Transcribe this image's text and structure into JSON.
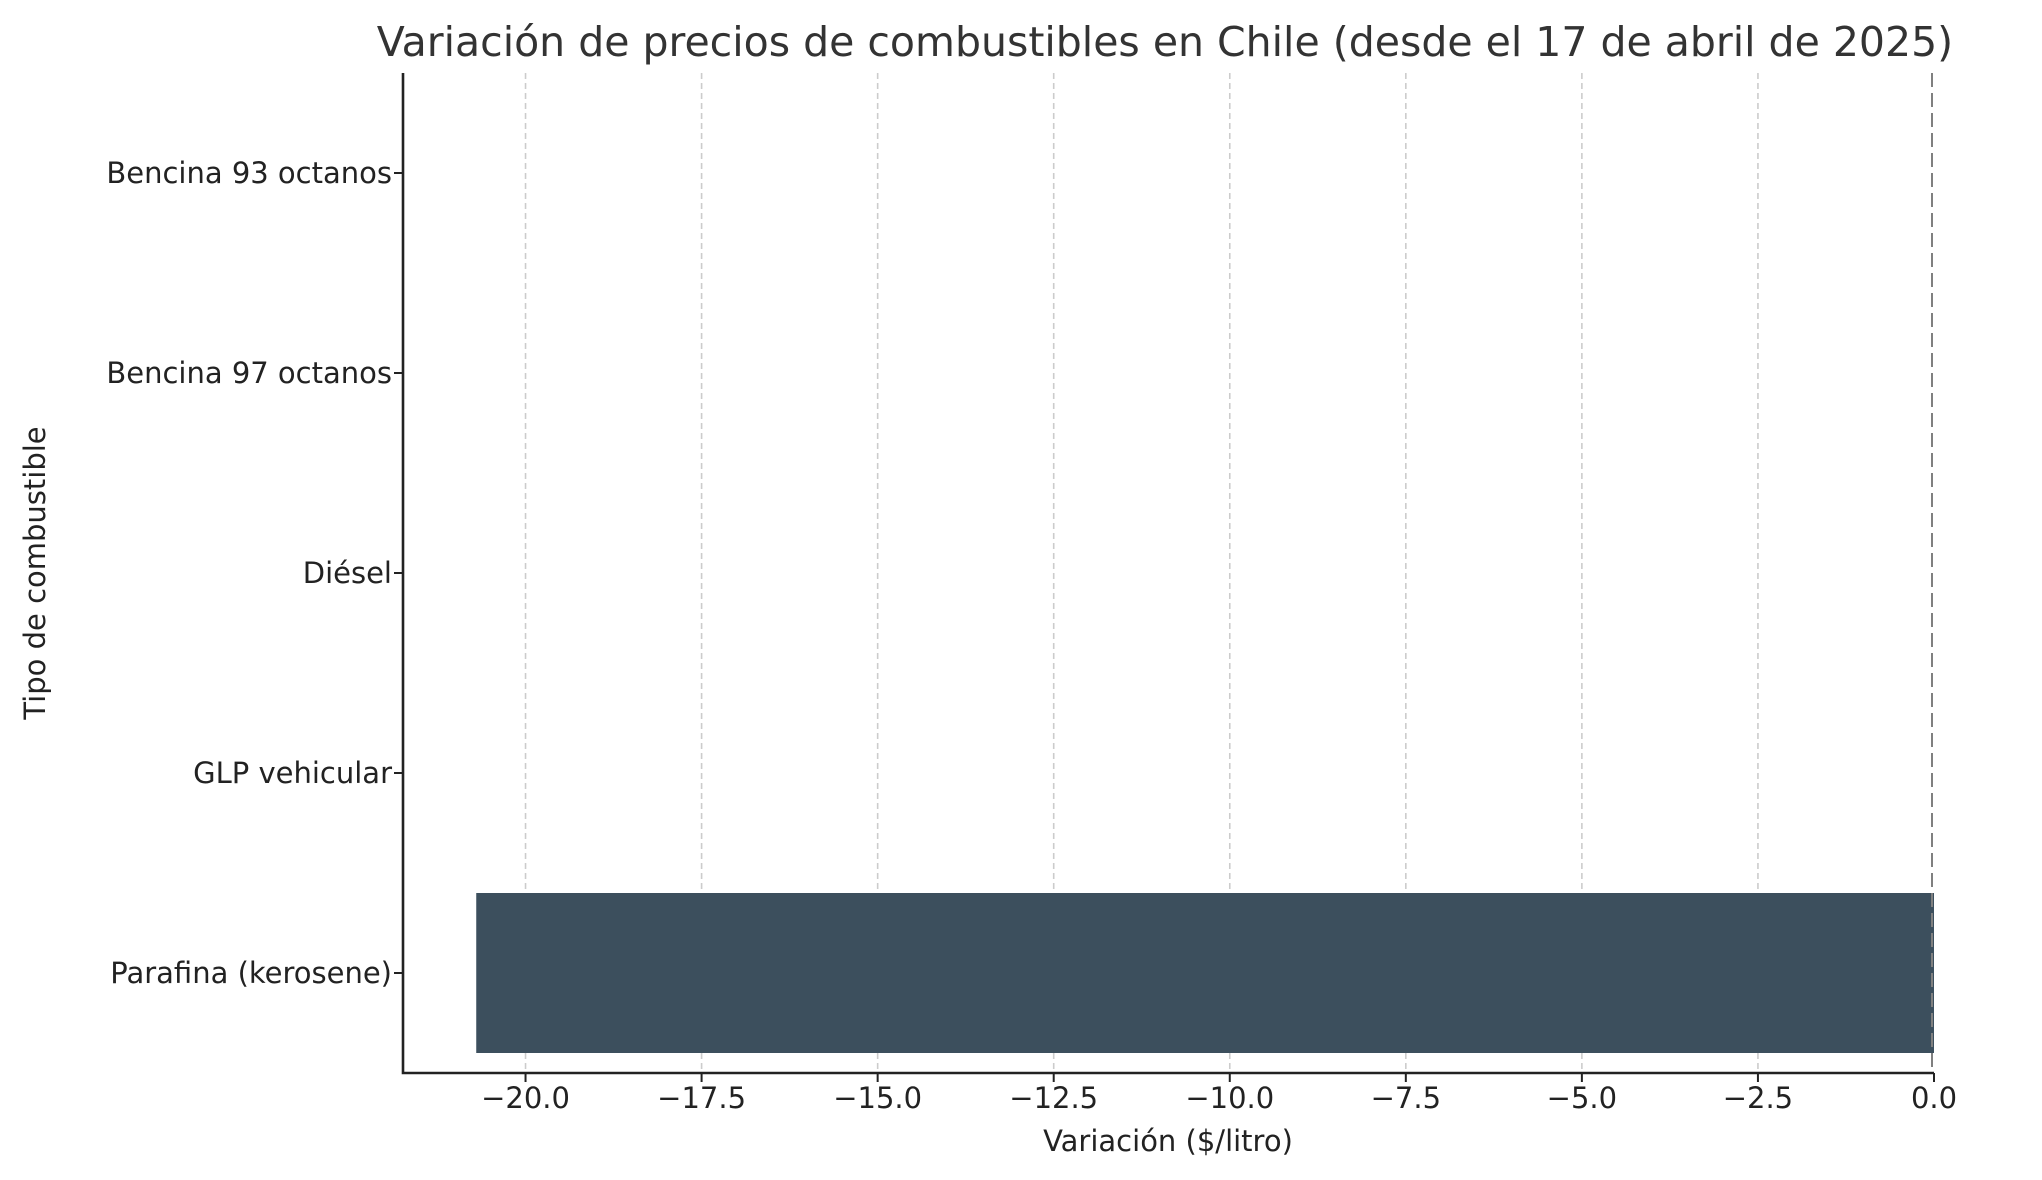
{
  "chart_data": {
    "type": "bar",
    "orientation": "horizontal",
    "title": "Variación de precios de combustibles en Chile (desde el 17 de abril de 2025)",
    "xlabel": "Variación ($/litro)",
    "ylabel": "Tipo de combustible",
    "categories": [
      "Bencina 93 octanos",
      "Bencina 97 octanos",
      "Diésel",
      "GLP vehicular",
      "Parafina (kerosene)"
    ],
    "values": [
      0.0,
      0.0,
      0.0,
      0.0,
      -20.7
    ],
    "xlim": [
      -21.74,
      0.0
    ],
    "xticks": [
      -20.0,
      -17.5,
      -15.0,
      -12.5,
      -10.0,
      -7.5,
      -5.0,
      -2.5,
      0.0
    ],
    "xtick_labels": [
      "−20.0",
      "−17.5",
      "−15.0",
      "−12.5",
      "−10.0",
      "−7.5",
      "−5.0",
      "−2.5",
      "0.0"
    ],
    "grid": {
      "x": true,
      "y": false,
      "style": "dashed"
    },
    "reference_line": {
      "x": 0.0,
      "style": "dashed",
      "color": "#808080"
    },
    "bar_color": "#3c4f5d",
    "legend": null
  }
}
